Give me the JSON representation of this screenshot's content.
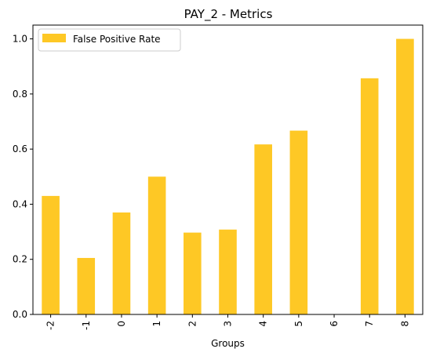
{
  "chart_data": {
    "type": "bar",
    "title": "PAY_2 - Metrics",
    "xlabel": "Groups",
    "ylabel": "",
    "categories": [
      "-2",
      "-1",
      "0",
      "1",
      "2",
      "3",
      "4",
      "5",
      "6",
      "7",
      "8"
    ],
    "series": [
      {
        "name": "False Positive Rate",
        "color": "#fec825",
        "values": [
          0.43,
          0.205,
          0.37,
          0.5,
          0.297,
          0.308,
          0.617,
          0.667,
          0.0,
          0.857,
          1.0
        ]
      }
    ],
    "ylim": [
      0,
      1.05
    ],
    "yticks": [
      "0.0",
      "0.2",
      "0.4",
      "0.6",
      "0.8",
      "1.0"
    ],
    "ytick_values": [
      0,
      0.2,
      0.4,
      0.6,
      0.8,
      1.0
    ],
    "grid": false,
    "legend_position": "top-left"
  }
}
